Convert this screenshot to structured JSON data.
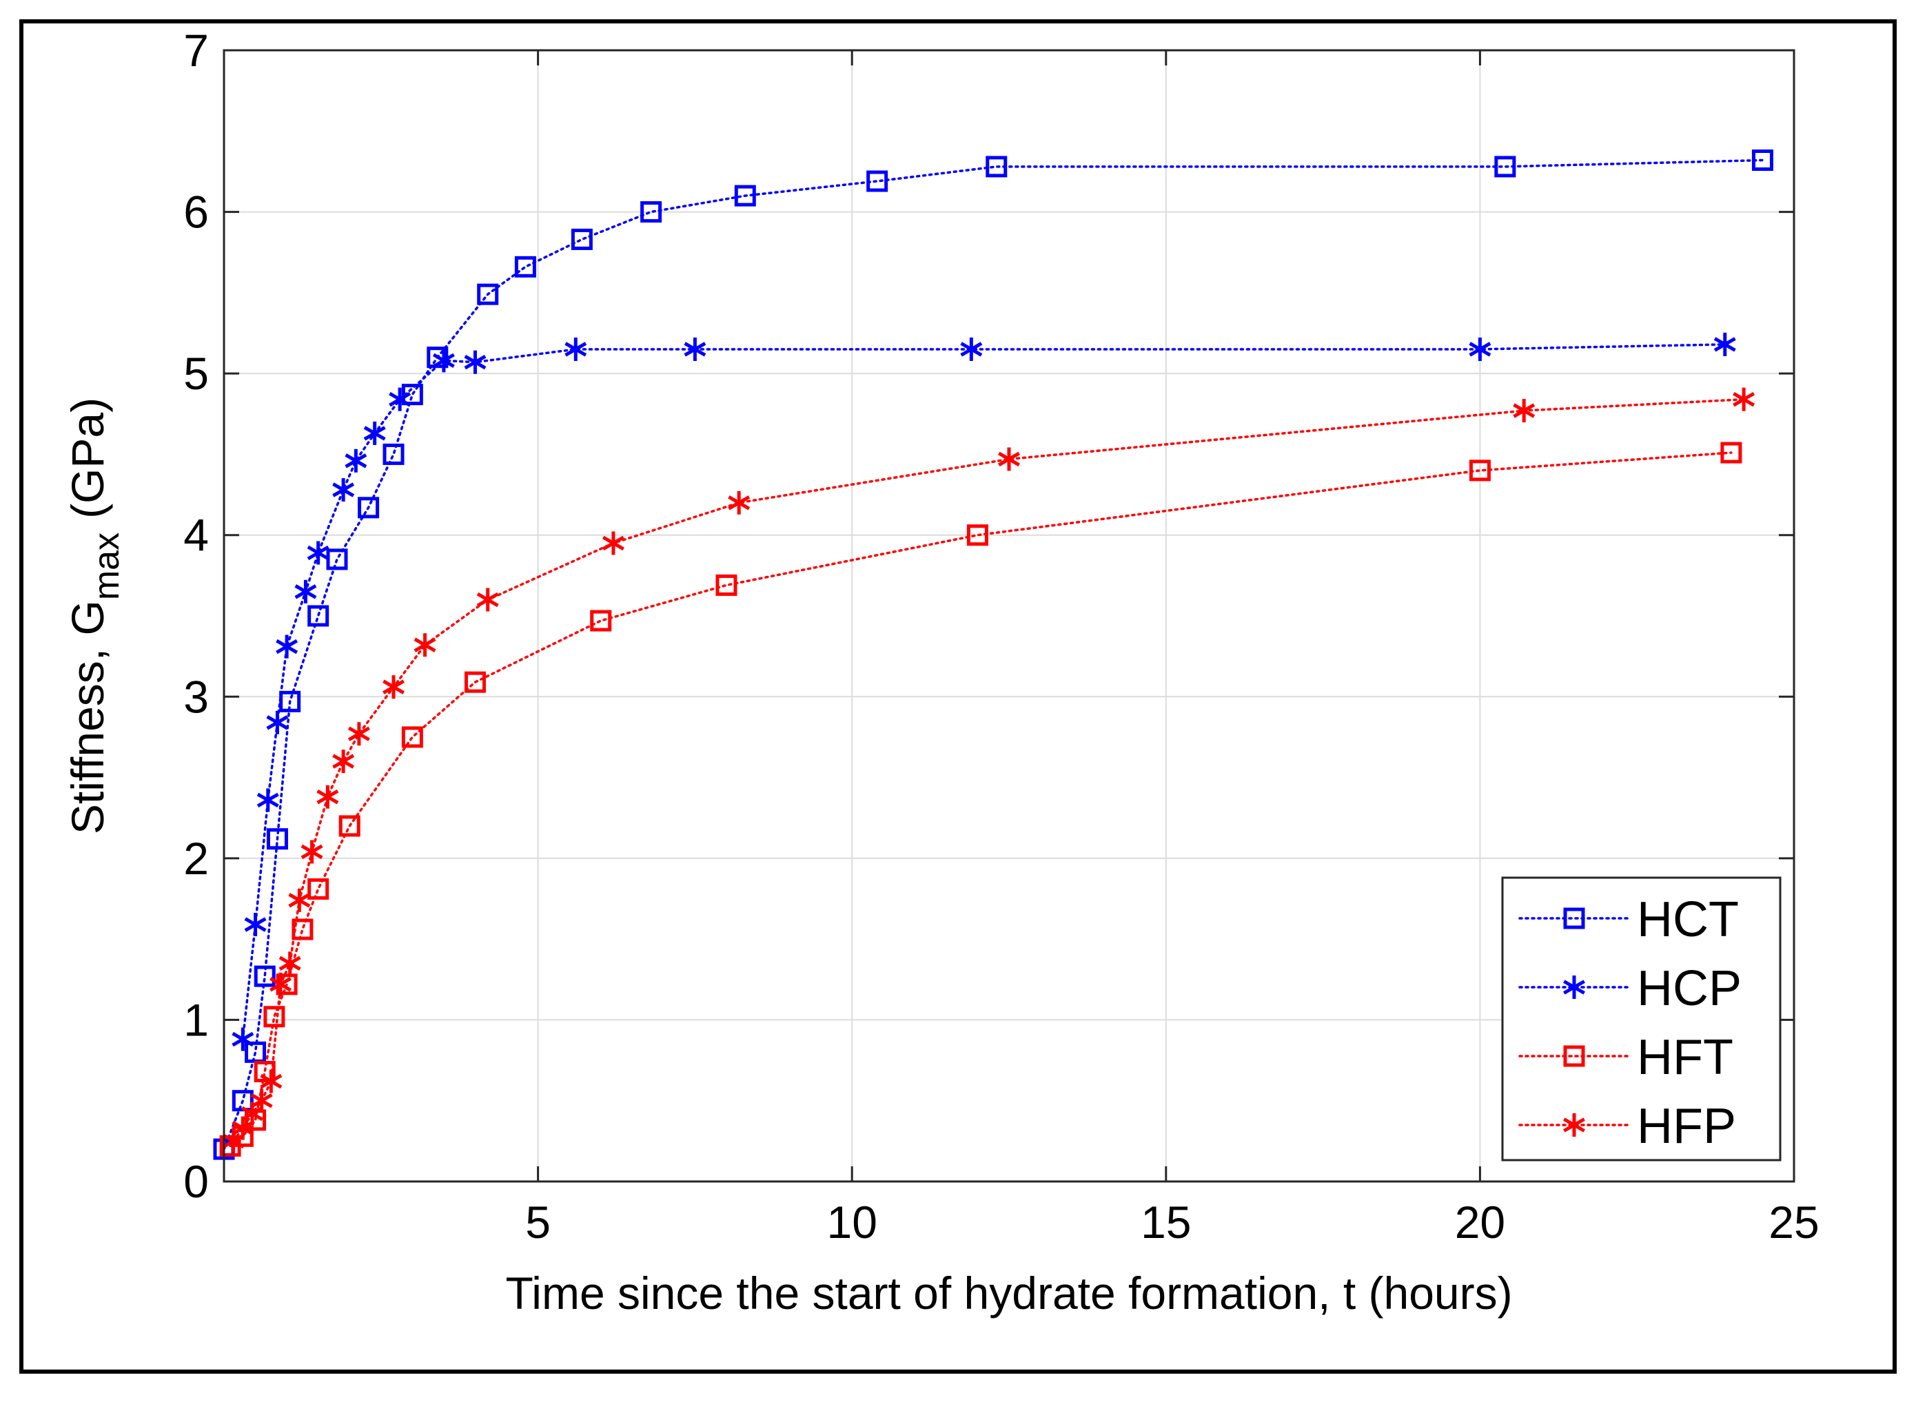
{
  "chart_data": {
    "type": "line",
    "title": "",
    "xlabel": "Time since the start of hydrate formation, t (hours)",
    "ylabel_main": "Stiffness, G",
    "ylabel_sub": "max",
    "ylabel_unit": "(GPa)",
    "xlim": [
      0,
      25
    ],
    "ylim": [
      0,
      7
    ],
    "xticks": [
      5,
      10,
      15,
      20,
      25
    ],
    "yticks": [
      0,
      1,
      2,
      3,
      4,
      5,
      6,
      7
    ],
    "grid": true,
    "legend_position": "bottom-right",
    "series": [
      {
        "name": "HCT",
        "color": "#0000ff",
        "marker": "square",
        "x": [
          0.0,
          0.3,
          0.5,
          0.65,
          0.85,
          1.05,
          1.5,
          1.8,
          2.3,
          2.7,
          3.0,
          3.4,
          4.2,
          4.8,
          5.7,
          6.8,
          8.3,
          10.4,
          12.3,
          20.4,
          24.5
        ],
        "y": [
          0.2,
          0.5,
          0.8,
          1.27,
          2.12,
          2.97,
          3.5,
          3.85,
          4.17,
          4.5,
          4.87,
          5.1,
          5.49,
          5.66,
          5.83,
          6.0,
          6.1,
          6.19,
          6.28,
          6.28,
          6.32
        ]
      },
      {
        "name": "HCP",
        "color": "#0000ff",
        "marker": "asterisk",
        "x": [
          0.3,
          0.5,
          0.7,
          0.85,
          1.0,
          1.3,
          1.5,
          1.9,
          2.1,
          2.4,
          2.8,
          3.5,
          4.0,
          5.6,
          7.5,
          11.9,
          20.0,
          23.9
        ],
        "y": [
          0.88,
          1.59,
          2.36,
          2.84,
          3.31,
          3.65,
          3.89,
          4.28,
          4.46,
          4.63,
          4.84,
          5.08,
          5.07,
          5.15,
          5.15,
          5.15,
          5.15,
          5.18
        ],
        "series_note": ""
      },
      {
        "name": "HFT",
        "color": "#ff0000",
        "marker": "square",
        "x": [
          0.1,
          0.3,
          0.5,
          0.65,
          0.8,
          1.0,
          1.25,
          1.5,
          2.0,
          3.0,
          4.0,
          6.0,
          8.0,
          12.0,
          20.0,
          24.0
        ],
        "y": [
          0.22,
          0.28,
          0.38,
          0.68,
          1.02,
          1.22,
          1.56,
          1.81,
          2.2,
          2.75,
          3.09,
          3.47,
          3.69,
          4.0,
          4.4,
          4.51
        ]
      },
      {
        "name": "HFP",
        "color": "#ff0000",
        "marker": "asterisk",
        "x": [
          0.15,
          0.3,
          0.45,
          0.6,
          0.75,
          0.9,
          1.05,
          1.2,
          1.4,
          1.65,
          1.9,
          2.15,
          2.7,
          3.2,
          4.2,
          6.2,
          8.2,
          12.5,
          20.7,
          24.2
        ],
        "y": [
          0.25,
          0.33,
          0.42,
          0.5,
          0.62,
          1.22,
          1.35,
          1.74,
          2.04,
          2.38,
          2.6,
          2.77,
          3.06,
          3.32,
          3.6,
          3.95,
          4.2,
          4.47,
          4.77,
          4.84
        ]
      }
    ]
  }
}
